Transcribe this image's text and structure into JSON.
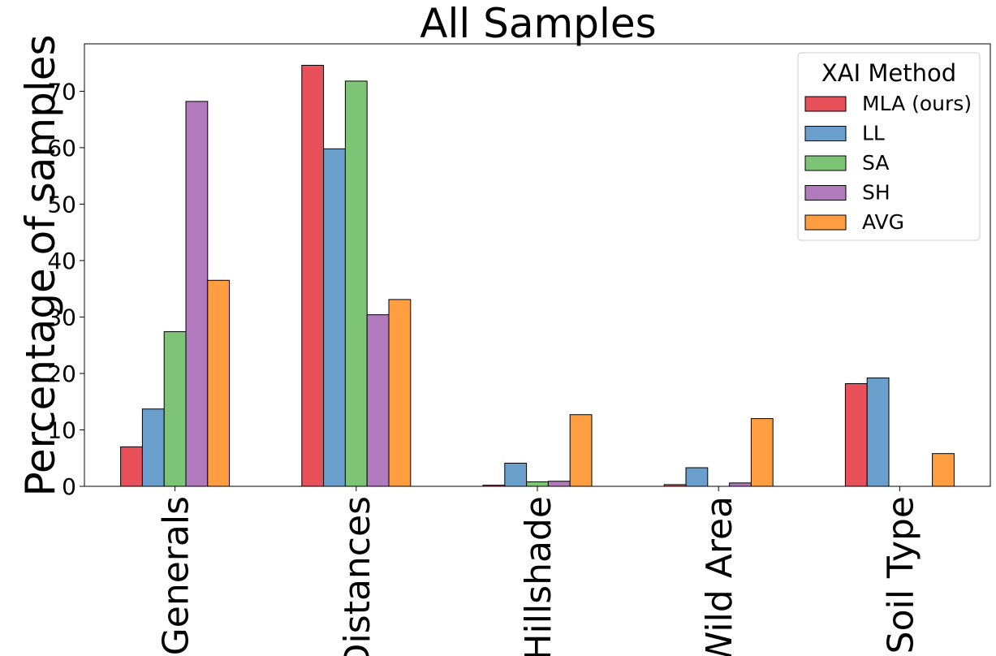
{
  "chart_data": {
    "type": "bar",
    "title": "All Samples",
    "xlabel": "",
    "ylabel": "Percentage of samples",
    "ylim": [
      0,
      78.4
    ],
    "yticks": [
      0,
      10,
      20,
      30,
      40,
      50,
      60,
      70
    ],
    "grid": false,
    "categories": [
      "Generals",
      "Distances",
      "Hillshade",
      "Wild Area",
      "Soil Type"
    ],
    "legend": {
      "title": "XAI Method",
      "placement": "top-right"
    },
    "series": [
      {
        "name": "MLA (ours)",
        "color": "#e8515a",
        "values": [
          7.0,
          74.6,
          0.2,
          0.3,
          18.2
        ]
      },
      {
        "name": "LL",
        "color": "#6a9fcb",
        "values": [
          13.7,
          59.8,
          4.1,
          3.3,
          19.2
        ]
      },
      {
        "name": "SA",
        "color": "#7dc476",
        "values": [
          27.4,
          71.8,
          0.8,
          0.0,
          0.0
        ]
      },
      {
        "name": "SH",
        "color": "#b07abd",
        "values": [
          68.2,
          30.4,
          0.9,
          0.6,
          0.0
        ]
      },
      {
        "name": "AVG",
        "color": "#ff9e40",
        "values": [
          36.5,
          33.1,
          12.7,
          12.0,
          5.8
        ]
      }
    ]
  }
}
